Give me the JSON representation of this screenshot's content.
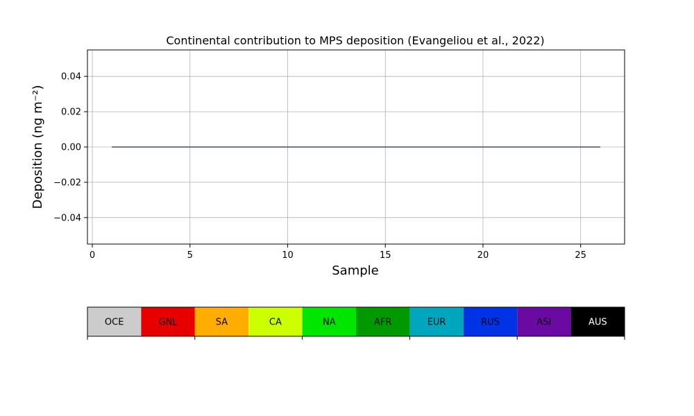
{
  "chart_data": {
    "type": "line",
    "title": "Continental contribution to MPS deposition (Evangeliou et al., 2022)",
    "xlabel": "Sample",
    "ylabel": "Deposition (ng m⁻²)",
    "xlim": [
      -0.25,
      27.25
    ],
    "ylim": [
      -0.055,
      0.055
    ],
    "xticks": [
      0,
      5,
      10,
      15,
      20,
      25
    ],
    "yticks": [
      -0.04,
      -0.02,
      0.0,
      0.02,
      0.04
    ],
    "ytick_labels": [
      "−0.04",
      "−0.02",
      "0.00",
      "0.02",
      "0.04"
    ],
    "grid": true,
    "series": [
      {
        "color": "#3b4a8c",
        "x": [
          1,
          26
        ],
        "y": [
          0,
          0
        ]
      }
    ],
    "legend_colorbar": {
      "labels": [
        "OCE",
        "GNL",
        "SA",
        "CA",
        "NA",
        "AFR",
        "EUR",
        "RUS",
        "ASI",
        "AUS"
      ],
      "colors": [
        "#cccccc",
        "#e60000",
        "#ffad00",
        "#ccff00",
        "#00e600",
        "#009900",
        "#00a6bd",
        "#0033e6",
        "#6a0aa3",
        "#000000"
      ],
      "label_colors": [
        "#000000",
        "#000000",
        "#000000",
        "#000000",
        "#000000",
        "#000000",
        "#000000",
        "#000000",
        "#000000",
        "#ffffff"
      ]
    }
  }
}
